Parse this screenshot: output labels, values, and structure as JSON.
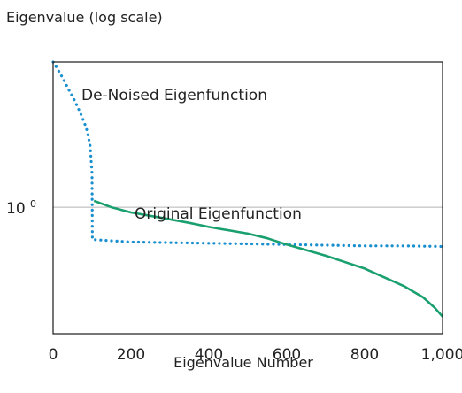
{
  "chart_data": {
    "type": "line",
    "title": "",
    "ylabel": "Eigenvalue (log scale)",
    "xlabel": "Eigenvalue Number",
    "x_ticks": [
      {
        "value": 0,
        "label": "0"
      },
      {
        "value": 200,
        "label": "200"
      },
      {
        "value": 400,
        "label": "400"
      },
      {
        "value": 600,
        "label": "600"
      },
      {
        "value": 800,
        "label": "800"
      },
      {
        "value": 1000,
        "label": "1,000"
      }
    ],
    "y_tick": {
      "value": 1,
      "base": "10",
      "exponent": "0"
    },
    "xlim": [
      0,
      1000
    ],
    "ylim": [
      0.22,
      5.7
    ],
    "y_scale": "log",
    "grid": false,
    "reference_line": {
      "y": 1,
      "color": "#b3b3b3"
    },
    "series": [
      {
        "name": "De-Noised Eigenfunction",
        "color": "#1a8fd0",
        "style": "dotted",
        "points": [
          [
            0,
            5.7
          ],
          [
            10,
            5.3
          ],
          [
            25,
            4.7
          ],
          [
            40,
            4.1
          ],
          [
            55,
            3.6
          ],
          [
            70,
            3.1
          ],
          [
            85,
            2.6
          ],
          [
            95,
            2.1
          ],
          [
            100,
            1.5
          ],
          [
            101,
            0.68
          ],
          [
            150,
            0.67
          ],
          [
            200,
            0.66
          ],
          [
            300,
            0.655
          ],
          [
            400,
            0.65
          ],
          [
            500,
            0.645
          ],
          [
            600,
            0.64
          ],
          [
            700,
            0.635
          ],
          [
            800,
            0.63
          ],
          [
            900,
            0.63
          ],
          [
            1000,
            0.625
          ]
        ]
      },
      {
        "name": "Original Eigenfunction",
        "color": "#1aa06e",
        "style": "solid",
        "points": [
          [
            105,
            1.08
          ],
          [
            150,
            1.0
          ],
          [
            200,
            0.94
          ],
          [
            280,
            0.88
          ],
          [
            350,
            0.83
          ],
          [
            400,
            0.79
          ],
          [
            500,
            0.73
          ],
          [
            550,
            0.69
          ],
          [
            600,
            0.64
          ],
          [
            700,
            0.56
          ],
          [
            800,
            0.48
          ],
          [
            900,
            0.39
          ],
          [
            950,
            0.34
          ],
          [
            980,
            0.3
          ],
          [
            1000,
            0.27
          ]
        ]
      }
    ]
  }
}
